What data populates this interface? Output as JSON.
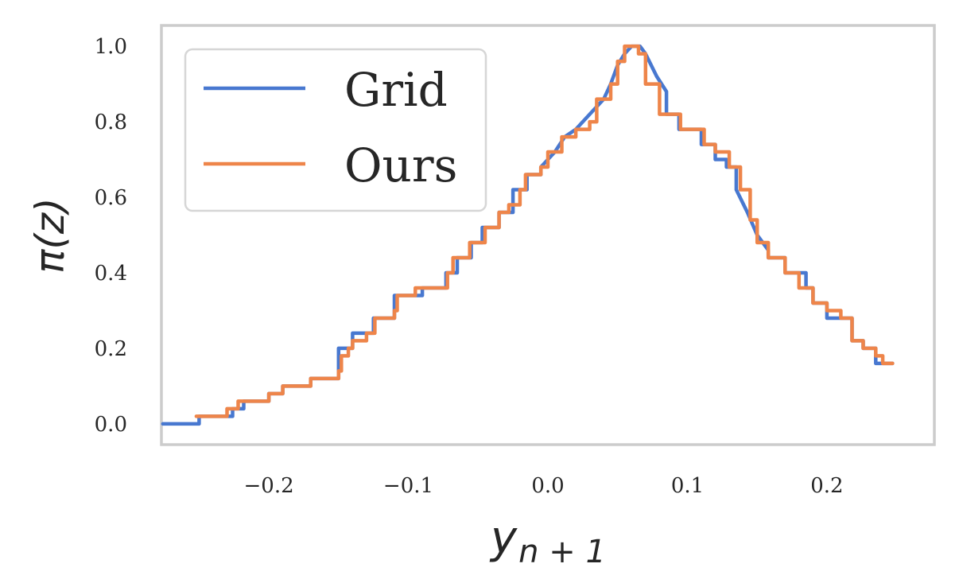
{
  "chart_data": {
    "type": "line",
    "title": "",
    "xlabel": "y",
    "xlabel_subscript": "n + 1",
    "ylabel": "π(z)",
    "xlim": [
      -0.277,
      0.277
    ],
    "ylim": [
      -0.055,
      1.055
    ],
    "xticks": [
      -0.2,
      -0.1,
      0.0,
      0.1,
      0.2
    ],
    "xtick_labels": [
      "−0.2",
      "−0.1",
      "0.0",
      "0.1",
      "0.2"
    ],
    "yticks": [
      0.0,
      0.2,
      0.4,
      0.6,
      0.8,
      1.0
    ],
    "ytick_labels": [
      "0.0",
      "0.2",
      "0.4",
      "0.6",
      "0.8",
      "1.0"
    ],
    "grid": false,
    "legend": "top-left",
    "colors": {
      "frame": "#cccccc",
      "text": "#262626"
    },
    "series": [
      {
        "name": "Grid",
        "color": "#4878d0",
        "x": [
          -0.276,
          -0.25,
          -0.25,
          -0.226,
          -0.226,
          -0.218,
          -0.218,
          -0.2,
          -0.2,
          -0.19,
          -0.19,
          -0.17,
          -0.17,
          -0.15,
          -0.15,
          -0.14,
          -0.14,
          -0.125,
          -0.125,
          -0.11,
          -0.11,
          -0.09,
          -0.09,
          -0.073,
          -0.073,
          -0.065,
          -0.065,
          -0.055,
          -0.055,
          -0.047,
          -0.047,
          -0.035,
          -0.035,
          -0.025,
          -0.025,
          -0.015,
          -0.015,
          -0.005,
          -0.005,
          0.0,
          0.005,
          0.012,
          0.02,
          0.03,
          0.04,
          0.045,
          0.05,
          0.055,
          0.06,
          0.066,
          0.07,
          0.078,
          0.085,
          0.085,
          0.094,
          0.094,
          0.11,
          0.11,
          0.12,
          0.12,
          0.128,
          0.128,
          0.135,
          0.135,
          0.143,
          0.15,
          0.158,
          0.158,
          0.17,
          0.17,
          0.185,
          0.185,
          0.19,
          0.19,
          0.2,
          0.2,
          0.218,
          0.218,
          0.226,
          0.226,
          0.235,
          0.235,
          0.247
        ],
        "y": [
          0.0,
          0.0,
          0.02,
          0.02,
          0.04,
          0.04,
          0.06,
          0.06,
          0.08,
          0.08,
          0.1,
          0.1,
          0.12,
          0.12,
          0.2,
          0.2,
          0.24,
          0.24,
          0.28,
          0.28,
          0.34,
          0.34,
          0.36,
          0.36,
          0.4,
          0.4,
          0.44,
          0.44,
          0.48,
          0.48,
          0.52,
          0.52,
          0.56,
          0.56,
          0.62,
          0.62,
          0.66,
          0.66,
          0.68,
          0.7,
          0.72,
          0.76,
          0.78,
          0.82,
          0.86,
          0.9,
          0.95,
          0.98,
          1.0,
          1.0,
          0.98,
          0.92,
          0.88,
          0.82,
          0.82,
          0.78,
          0.78,
          0.74,
          0.74,
          0.7,
          0.7,
          0.68,
          0.68,
          0.62,
          0.56,
          0.5,
          0.46,
          0.44,
          0.44,
          0.4,
          0.4,
          0.36,
          0.36,
          0.32,
          0.32,
          0.28,
          0.28,
          0.22,
          0.22,
          0.2,
          0.2,
          0.16,
          0.16
        ]
      },
      {
        "name": "Ours",
        "color": "#ee854a",
        "x": [
          -0.252,
          -0.23,
          -0.23,
          -0.222,
          -0.222,
          -0.2,
          -0.2,
          -0.19,
          -0.19,
          -0.17,
          -0.17,
          -0.15,
          -0.15,
          -0.148,
          -0.148,
          -0.143,
          -0.143,
          -0.14,
          -0.14,
          -0.13,
          -0.13,
          -0.124,
          -0.124,
          -0.11,
          -0.11,
          -0.108,
          -0.108,
          -0.095,
          -0.095,
          -0.072,
          -0.072,
          -0.068,
          -0.068,
          -0.056,
          -0.056,
          -0.045,
          -0.045,
          -0.035,
          -0.035,
          -0.028,
          -0.028,
          -0.02,
          -0.02,
          -0.016,
          -0.016,
          -0.005,
          -0.005,
          0.0,
          0.0,
          0.01,
          0.01,
          0.02,
          0.02,
          0.03,
          0.03,
          0.035,
          0.035,
          0.045,
          0.045,
          0.05,
          0.05,
          0.055,
          0.055,
          0.065,
          0.065,
          0.07,
          0.07,
          0.08,
          0.08,
          0.095,
          0.095,
          0.112,
          0.112,
          0.12,
          0.12,
          0.13,
          0.13,
          0.138,
          0.138,
          0.145,
          0.145,
          0.15,
          0.15,
          0.158,
          0.158,
          0.17,
          0.17,
          0.18,
          0.18,
          0.19,
          0.19,
          0.2,
          0.2,
          0.21,
          0.21,
          0.218,
          0.218,
          0.226,
          0.226,
          0.235,
          0.235,
          0.24,
          0.24,
          0.247
        ],
        "y": [
          0.02,
          0.02,
          0.04,
          0.04,
          0.06,
          0.06,
          0.08,
          0.08,
          0.1,
          0.1,
          0.12,
          0.12,
          0.14,
          0.14,
          0.18,
          0.18,
          0.2,
          0.2,
          0.22,
          0.22,
          0.24,
          0.24,
          0.28,
          0.28,
          0.3,
          0.3,
          0.34,
          0.34,
          0.36,
          0.36,
          0.4,
          0.4,
          0.44,
          0.44,
          0.48,
          0.48,
          0.52,
          0.52,
          0.56,
          0.56,
          0.58,
          0.58,
          0.62,
          0.62,
          0.66,
          0.66,
          0.68,
          0.68,
          0.72,
          0.72,
          0.76,
          0.76,
          0.78,
          0.78,
          0.8,
          0.8,
          0.86,
          0.86,
          0.9,
          0.9,
          0.96,
          0.96,
          1.0,
          1.0,
          0.98,
          0.98,
          0.9,
          0.9,
          0.82,
          0.82,
          0.78,
          0.78,
          0.74,
          0.74,
          0.72,
          0.72,
          0.68,
          0.68,
          0.62,
          0.62,
          0.54,
          0.54,
          0.48,
          0.48,
          0.44,
          0.44,
          0.4,
          0.4,
          0.36,
          0.36,
          0.32,
          0.32,
          0.3,
          0.3,
          0.28,
          0.28,
          0.22,
          0.22,
          0.2,
          0.2,
          0.18,
          0.18,
          0.16,
          0.16
        ]
      }
    ]
  }
}
